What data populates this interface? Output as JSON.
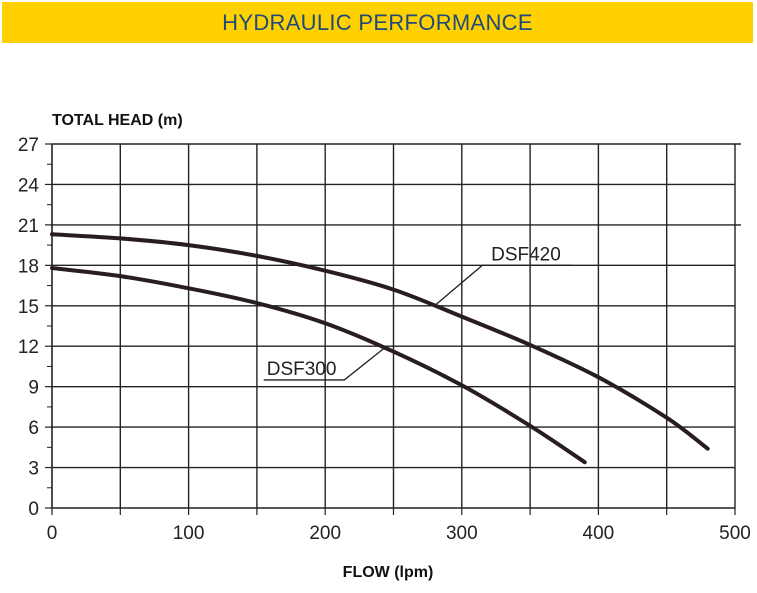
{
  "banner": {
    "title": "HYDRAULIC PERFORMANCE",
    "color": "#ffd100",
    "text_color": "#1f4a7a"
  },
  "chart_data": {
    "type": "line",
    "title": "",
    "xlabel": "FLOW (lpm)",
    "ylabel": "TOTAL HEAD (m)",
    "xlim": [
      0,
      500
    ],
    "ylim": [
      0,
      27
    ],
    "x_ticks": [
      0,
      100,
      200,
      300,
      400,
      500
    ],
    "y_ticks": [
      0,
      3,
      6,
      9,
      12,
      15,
      18,
      21,
      24,
      27
    ],
    "grid": true,
    "series": [
      {
        "name": "DSF420",
        "color": "#2a1d1d",
        "x": [
          0,
          50,
          100,
          150,
          200,
          250,
          300,
          350,
          400,
          450,
          480
        ],
        "y": [
          20.3,
          20.0,
          19.5,
          18.7,
          17.6,
          16.2,
          14.2,
          12.1,
          9.7,
          6.7,
          4.4
        ]
      },
      {
        "name": "DSF300",
        "color": "#2a1d1d",
        "x": [
          0,
          50,
          100,
          150,
          200,
          250,
          300,
          350,
          390
        ],
        "y": [
          17.8,
          17.2,
          16.3,
          15.2,
          13.7,
          11.6,
          9.1,
          6.1,
          3.4
        ]
      }
    ]
  }
}
